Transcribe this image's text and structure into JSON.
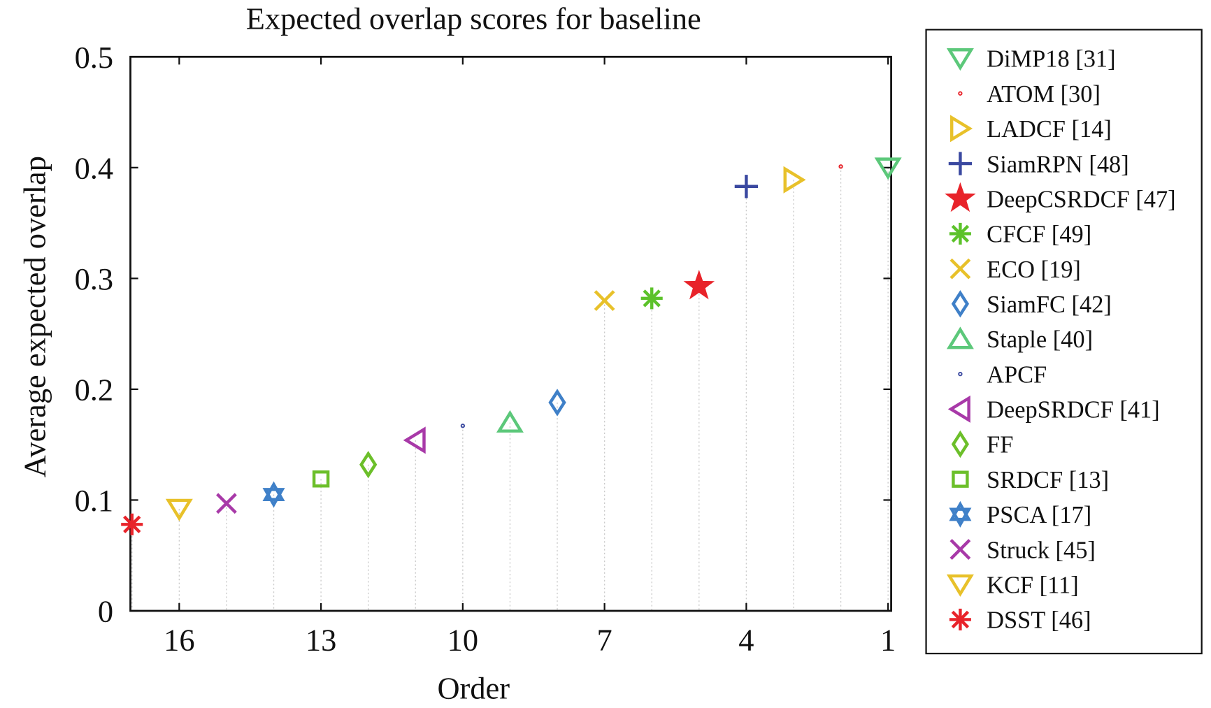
{
  "chart_data": {
    "type": "scatter",
    "title": "Expected overlap scores for baseline",
    "xlabel": "Order",
    "ylabel": "Average expected overlap",
    "xlim": [
      17,
      1
    ],
    "ylim": [
      0,
      0.5
    ],
    "x_ticks": [
      16,
      13,
      10,
      7,
      4,
      1
    ],
    "y_ticks": [
      0,
      0.1,
      0.2,
      0.3,
      0.4,
      0.5
    ],
    "y_tick_labels": [
      "0",
      "0.1",
      "0.2",
      "0.3",
      "0.4",
      "0.5"
    ],
    "legend_position": "outside-right",
    "series": [
      {
        "name": "DiMP18 [31]",
        "order": 1,
        "value": 0.4,
        "marker": "triangle-down",
        "color": "#5cc87a"
      },
      {
        "name": "ATOM [30]",
        "order": 2,
        "value": 0.401,
        "marker": "circle",
        "color": "#e8232a"
      },
      {
        "name": "LADCF [14]",
        "order": 3,
        "value": 0.389,
        "marker": "triangle-right",
        "color": "#e8c12a"
      },
      {
        "name": "SiamRPN [48]",
        "order": 4,
        "value": 0.383,
        "marker": "plus",
        "color": "#3a48a0"
      },
      {
        "name": "DeepCSRDCF [47]",
        "order": 5,
        "value": 0.293,
        "marker": "star",
        "color": "#e8232a"
      },
      {
        "name": "CFCF [49]",
        "order": 6,
        "value": 0.282,
        "marker": "asterisk",
        "color": "#5cc22a"
      },
      {
        "name": "ECO [19]",
        "order": 7,
        "value": 0.28,
        "marker": "x",
        "color": "#e8c12a"
      },
      {
        "name": "SiamFC [42]",
        "order": 8,
        "value": 0.188,
        "marker": "diamond",
        "color": "#3f80c8"
      },
      {
        "name": "Staple [40]",
        "order": 9,
        "value": 0.17,
        "marker": "triangle-up",
        "color": "#5cc87a"
      },
      {
        "name": "APCF",
        "order": 10,
        "value": 0.167,
        "marker": "circle",
        "color": "#3a48a0"
      },
      {
        "name": "DeepSRDCF [41]",
        "order": 11,
        "value": 0.154,
        "marker": "triangle-left",
        "color": "#a839a8"
      },
      {
        "name": "FF",
        "order": 12,
        "value": 0.132,
        "marker": "diamond",
        "color": "#6cbf2a"
      },
      {
        "name": "SRDCF [13]",
        "order": 13,
        "value": 0.119,
        "marker": "square",
        "color": "#6cbf2a"
      },
      {
        "name": "PSCA [17]",
        "order": 14,
        "value": 0.105,
        "marker": "hexagram",
        "color": "#3f80c8"
      },
      {
        "name": "Struck [45]",
        "order": 15,
        "value": 0.097,
        "marker": "x",
        "color": "#a839a8"
      },
      {
        "name": "KCF [11]",
        "order": 16,
        "value": 0.092,
        "marker": "triangle-down",
        "color": "#e8c12a"
      },
      {
        "name": "DSST [46]",
        "order": 17,
        "value": 0.078,
        "marker": "asterisk",
        "color": "#e8232a"
      }
    ]
  }
}
